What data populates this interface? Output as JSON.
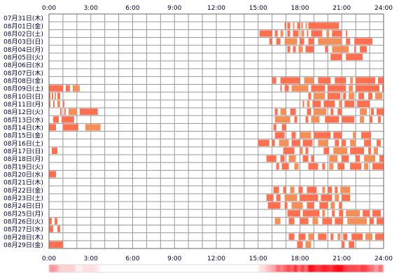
{
  "chart_data": {
    "type": "heatmap",
    "title": "",
    "xlabel": "",
    "ylabel": "",
    "x_range_hours": [
      0,
      24
    ],
    "x_ticks": [
      "0:00",
      "3:00",
      "6:00",
      "9:00",
      "12:00",
      "15:00",
      "18:00",
      "21:00",
      "24:00"
    ],
    "rows": [
      {
        "label": "07月31日(木)",
        "intervals": []
      },
      {
        "label": "08月01日(金)",
        "intervals": [
          [
            16.9,
            17.0
          ],
          [
            17.1,
            17.3
          ],
          [
            17.5,
            17.6
          ],
          [
            17.8,
            18.0
          ],
          [
            18.1,
            18.2
          ],
          [
            18.4,
            18.5
          ],
          [
            18.6,
            20.8
          ]
        ]
      },
      {
        "label": "08月02日(土)",
        "intervals": [
          [
            15.1,
            16.0
          ],
          [
            16.2,
            16.4
          ],
          [
            16.6,
            16.8
          ],
          [
            17.1,
            17.3
          ],
          [
            17.5,
            17.9
          ],
          [
            18.1,
            18.3
          ],
          [
            18.5,
            18.6
          ],
          [
            18.8,
            19.6
          ],
          [
            19.9,
            20.1
          ],
          [
            20.3,
            21.0
          ],
          [
            21.3,
            21.4
          ]
        ]
      },
      {
        "label": "08月03日(日)",
        "intervals": [
          [
            15.8,
            16.0
          ],
          [
            16.3,
            16.6
          ],
          [
            16.9,
            17.8
          ],
          [
            18.0,
            18.3
          ],
          [
            18.6,
            19.0
          ],
          [
            19.3,
            21.0
          ],
          [
            21.3,
            21.6
          ],
          [
            21.9,
            23.2
          ]
        ]
      },
      {
        "label": "08月04日(月)",
        "intervals": [
          [
            17.1,
            17.3
          ],
          [
            17.5,
            17.7
          ],
          [
            17.9,
            18.2
          ],
          [
            18.4,
            19.0
          ],
          [
            19.8,
            20.0
          ],
          [
            20.3,
            21.5
          ],
          [
            21.9,
            22.0
          ],
          [
            22.3,
            22.8
          ]
        ]
      },
      {
        "label": "08月05日(火)",
        "intervals": [
          [
            20.2,
            21.0
          ],
          [
            21.3,
            22.5
          ]
        ]
      },
      {
        "label": "08月06日(水)",
        "intervals": []
      },
      {
        "label": "08月07日(木)",
        "intervals": []
      },
      {
        "label": "08月08日(金)",
        "intervals": [
          [
            16.0,
            16.3
          ],
          [
            16.6,
            18.0
          ],
          [
            18.3,
            19.0
          ],
          [
            19.3,
            20.2
          ],
          [
            20.5,
            21.3
          ],
          [
            21.6,
            21.8
          ],
          [
            22.0,
            23.4
          ],
          [
            23.6,
            24.0
          ]
        ]
      },
      {
        "label": "08月09日(土)",
        "intervals": [
          [
            0.0,
            1.0
          ],
          [
            1.2,
            1.5
          ],
          [
            1.7,
            2.2
          ],
          [
            16.6,
            16.7
          ],
          [
            16.9,
            17.2
          ],
          [
            17.4,
            18.6
          ],
          [
            18.8,
            19.8
          ],
          [
            20.0,
            21.3
          ],
          [
            21.5,
            21.8
          ],
          [
            22.0,
            23.7
          ],
          [
            23.9,
            24.0
          ]
        ]
      },
      {
        "label": "08月10日(日)",
        "intervals": [
          [
            0.0,
            0.1
          ],
          [
            0.2,
            0.3
          ],
          [
            0.4,
            0.5
          ],
          [
            0.6,
            0.8
          ],
          [
            18.6,
            18.8
          ],
          [
            19.0,
            19.8
          ],
          [
            20.0,
            20.9
          ],
          [
            21.1,
            21.3
          ],
          [
            21.5,
            21.9
          ],
          [
            22.2,
            22.6
          ],
          [
            22.9,
            23.2
          ],
          [
            23.4,
            23.9
          ]
        ]
      },
      {
        "label": "08月11日(月)",
        "intervals": [
          [
            0.0,
            0.1
          ],
          [
            0.3,
            0.4
          ],
          [
            0.6,
            0.8
          ],
          [
            1.0,
            1.1
          ],
          [
            18.2,
            18.3
          ],
          [
            18.5,
            18.7
          ],
          [
            18.9,
            19.5
          ],
          [
            19.7,
            20.5
          ],
          [
            20.8,
            21.0
          ],
          [
            21.2,
            21.9
          ],
          [
            22.1,
            23.0
          ]
        ]
      },
      {
        "label": "08月12日(火)",
        "intervals": [
          [
            0.8,
            0.9
          ],
          [
            1.1,
            1.2
          ],
          [
            1.4,
            2.0
          ],
          [
            2.2,
            3.5
          ],
          [
            16.2,
            16.4
          ],
          [
            16.6,
            17.0
          ],
          [
            17.3,
            17.7
          ],
          [
            18.5,
            18.8
          ],
          [
            19.0,
            19.9
          ],
          [
            20.2,
            20.4
          ],
          [
            20.7,
            21.0
          ],
          [
            22.3,
            22.8
          ],
          [
            23.1,
            23.3
          ],
          [
            23.5,
            24.0
          ]
        ]
      },
      {
        "label": "08月13日(水)",
        "intervals": [
          [
            0.3,
            0.7
          ],
          [
            0.9,
            1.8
          ],
          [
            16.2,
            17.3
          ],
          [
            17.6,
            17.8
          ],
          [
            18.4,
            18.6
          ],
          [
            18.8,
            19.4
          ],
          [
            19.8,
            20.8
          ],
          [
            21.0,
            21.9
          ],
          [
            22.3,
            22.6
          ],
          [
            23.0,
            23.2
          ],
          [
            23.6,
            23.8
          ]
        ]
      },
      {
        "label": "08月14日(木)",
        "intervals": [
          [
            0.0,
            0.5
          ],
          [
            1.0,
            2.1
          ],
          [
            2.6,
            3.7
          ],
          [
            16.1,
            16.3
          ],
          [
            16.7,
            17.0
          ]
        ]
      },
      {
        "label": "08月15日(金)",
        "intervals": [
          [
            16.2,
            16.9
          ],
          [
            17.4,
            17.7
          ],
          [
            18.0,
            18.8
          ],
          [
            19.0,
            20.2
          ],
          [
            20.4,
            21.0
          ],
          [
            21.8,
            22.0
          ],
          [
            22.4,
            23.1
          ]
        ]
      },
      {
        "label": "08月16日(土)",
        "intervals": [
          [
            15.0,
            15.8
          ],
          [
            16.0,
            16.2
          ],
          [
            16.5,
            17.2
          ],
          [
            17.4,
            18.0
          ],
          [
            18.2,
            18.9
          ],
          [
            19.3,
            20.0
          ],
          [
            20.5,
            20.8
          ],
          [
            21.0,
            21.3
          ],
          [
            21.6,
            22.0
          ],
          [
            22.6,
            23.1
          ],
          [
            23.5,
            23.8
          ]
        ]
      },
      {
        "label": "08月17日(日)",
        "intervals": [
          [
            0.2,
            0.6
          ],
          [
            16.8,
            17.6
          ],
          [
            18.0,
            18.2
          ],
          [
            18.4,
            18.6
          ],
          [
            19.7,
            20.1
          ],
          [
            20.4,
            21.4
          ],
          [
            21.6,
            22.6
          ],
          [
            22.9,
            23.1
          ],
          [
            23.3,
            23.6
          ]
        ]
      },
      {
        "label": "08月18日(月)",
        "intervals": [
          [
            15.6,
            16.3
          ],
          [
            16.6,
            16.9
          ],
          [
            17.2,
            17.7
          ],
          [
            18.2,
            18.6
          ],
          [
            18.8,
            19.0
          ],
          [
            20.1,
            20.7
          ],
          [
            21.0,
            21.5
          ],
          [
            22.0,
            22.3
          ],
          [
            22.6,
            23.4
          ],
          [
            23.7,
            24.0
          ]
        ]
      },
      {
        "label": "08月19日(火)",
        "intervals": [
          [
            16.3,
            16.5
          ],
          [
            16.7,
            17.2
          ],
          [
            17.6,
            17.9
          ],
          [
            18.6,
            19.3
          ],
          [
            19.6,
            19.8
          ],
          [
            20.1,
            20.4
          ],
          [
            20.7,
            21.2
          ],
          [
            21.6,
            22.4
          ],
          [
            22.6,
            22.9
          ],
          [
            23.2,
            24.0
          ]
        ]
      },
      {
        "label": "08月20日(水)",
        "intervals": [
          [
            0.0,
            0.5
          ]
        ]
      },
      {
        "label": "08月21日(木)",
        "intervals": []
      },
      {
        "label": "08月22日(金)",
        "intervals": [
          [
            16.1,
            16.5
          ],
          [
            16.8,
            17.0
          ],
          [
            17.3,
            17.6
          ],
          [
            17.9,
            18.2
          ],
          [
            18.5,
            19.2
          ],
          [
            19.6,
            19.8
          ],
          [
            20.0,
            20.3
          ],
          [
            20.5,
            20.7
          ],
          [
            20.9,
            21.6
          ]
        ]
      },
      {
        "label": "08月23日(土)",
        "intervals": [
          [
            15.6,
            16.1
          ],
          [
            16.3,
            16.6
          ],
          [
            16.9,
            17.8
          ],
          [
            18.0,
            19.3
          ],
          [
            19.5,
            20.3
          ],
          [
            20.5,
            20.8
          ],
          [
            21.0,
            21.6
          ]
        ]
      },
      {
        "label": "08月24日(日)",
        "intervals": [
          [
            15.7,
            16.6
          ],
          [
            16.9,
            17.1
          ],
          [
            17.4,
            18.2
          ],
          [
            18.5,
            19.0
          ],
          [
            19.4,
            20.0
          ],
          [
            20.2,
            20.5
          ],
          [
            20.8,
            21.0
          ]
        ]
      },
      {
        "label": "08月25日(月)",
        "intervals": [
          [
            17.1,
            18.0
          ],
          [
            18.2,
            19.4
          ],
          [
            19.6,
            19.8
          ],
          [
            20.3,
            20.5
          ],
          [
            20.8,
            21.1
          ],
          [
            21.3,
            22.3
          ],
          [
            22.5,
            23.0
          ],
          [
            23.2,
            23.8
          ]
        ]
      },
      {
        "label": "08月26日(火)",
        "intervals": [
          [
            0.0,
            0.2
          ],
          [
            0.4,
            0.6
          ],
          [
            16.2,
            16.6
          ],
          [
            17.2,
            17.6
          ],
          [
            18.0,
            18.6
          ],
          [
            18.9,
            19.3
          ],
          [
            19.6,
            20.3
          ],
          [
            20.5,
            21.1
          ],
          [
            21.4,
            22.8
          ],
          [
            23.0,
            23.3
          ],
          [
            23.5,
            24.0
          ]
        ]
      },
      {
        "label": "08月27日(水)",
        "intervals": [
          [
            0.0,
            0.3
          ],
          [
            0.6,
            0.8
          ]
        ]
      },
      {
        "label": "08月28日(木)",
        "intervals": [
          [
            17.2,
            17.6
          ],
          [
            17.9,
            18.4
          ],
          [
            18.6,
            19.0
          ],
          [
            19.3,
            19.9
          ],
          [
            20.2,
            20.4
          ],
          [
            20.7,
            20.9
          ],
          [
            21.1,
            21.4
          ],
          [
            21.7,
            22.5
          ],
          [
            22.7,
            23.2
          ],
          [
            23.4,
            24.0
          ]
        ]
      },
      {
        "label": "08月29日(金)",
        "intervals": [
          [
            0.0,
            1.0
          ],
          [
            17.8,
            18.2
          ],
          [
            18.4,
            18.8
          ],
          [
            21.0,
            21.2
          ],
          [
            21.5,
            21.9
          ]
        ]
      }
    ],
    "grid": true,
    "colors": {
      "bar_primary": "#ff7050",
      "bar_secondary": "#f58f58",
      "grid": "#999999",
      "axis_text": "#000033"
    },
    "density_strip": "bottom"
  }
}
